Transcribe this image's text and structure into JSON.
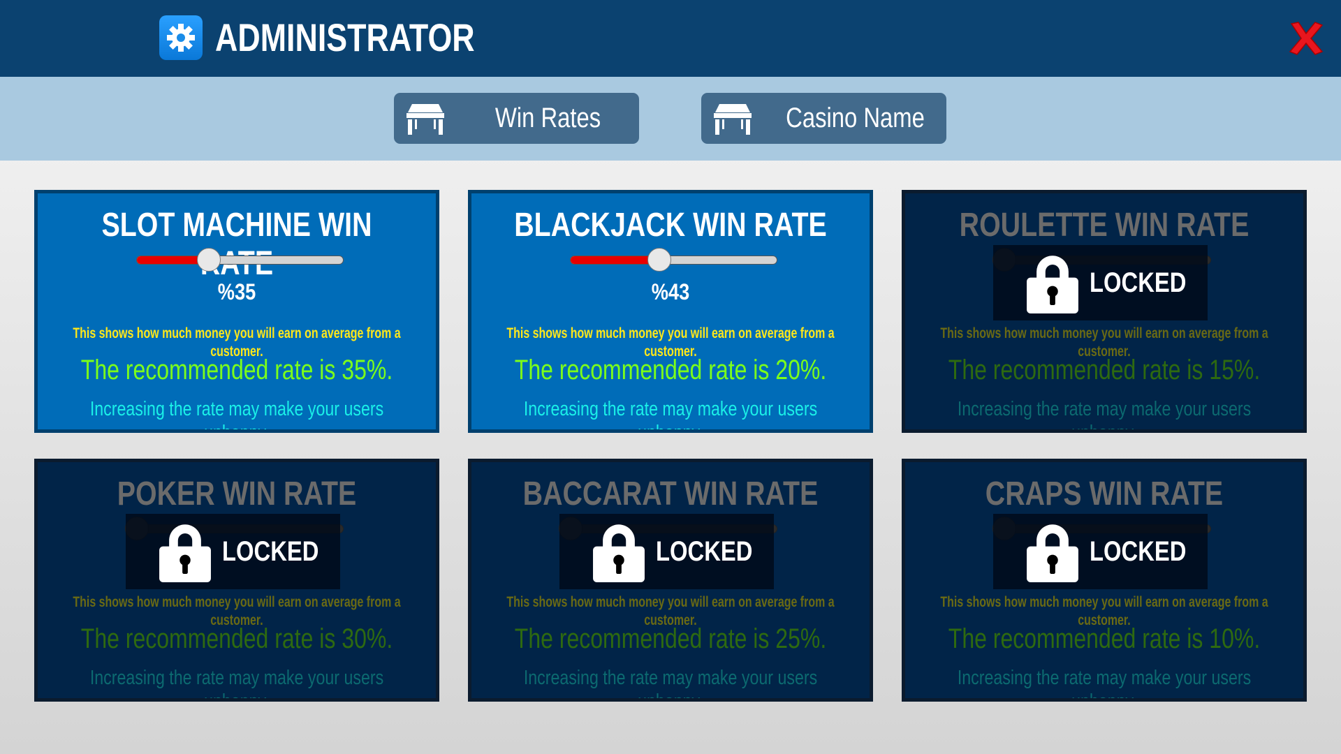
{
  "header": {
    "title": "ADMINISTRATOR",
    "icon": "gear-icon",
    "close_icon": "close-icon"
  },
  "tabs": [
    {
      "label": "Win Rates",
      "icon": "table-icon"
    },
    {
      "label": "Casino Name",
      "icon": "table-icon"
    }
  ],
  "colors": {
    "header": "#0b4270",
    "tabbar": "#a9c9e0",
    "card": "#006cb8",
    "card_locked": "#012448",
    "slider_fill": "#e80000",
    "desc": "#ffe81a",
    "recommended": "#7cff1a",
    "warning": "#1af0e8"
  },
  "cards": [
    {
      "title": "SLOT MACHINE WIN RATE",
      "value": "%35",
      "slider_percent": 35,
      "locked": false,
      "desc": "This shows how much money you will earn on average from a customer.",
      "recommended": "The recommended rate is 35%.",
      "warning": "Increasing the rate may make your users unhappy."
    },
    {
      "title": "BLACKJACK WIN RATE",
      "value": "%43",
      "slider_percent": 43,
      "locked": false,
      "desc": "This shows how much money you will earn on average from a customer.",
      "recommended": "The recommended rate is 20%.",
      "warning": "Increasing the rate may make your users unhappy."
    },
    {
      "title": "ROULETTE WIN RATE",
      "slider_percent": 0,
      "locked": true,
      "lock_label": "LOCKED",
      "desc": "This shows how much money you will earn on average from a customer.",
      "recommended": "The recommended rate is 15%.",
      "warning": "Increasing the rate may make your users unhappy."
    },
    {
      "title": "POKER WIN RATE",
      "slider_percent": 0,
      "locked": true,
      "lock_label": "LOCKED",
      "desc": "This shows how much money you will earn on average from a customer.",
      "recommended": "The recommended rate is 30%.",
      "warning": "Increasing the rate may make your users unhappy."
    },
    {
      "title": "BACCARAT WIN RATE",
      "slider_percent": 0,
      "locked": true,
      "lock_label": "LOCKED",
      "desc": "This shows how much money you will earn on average from a customer.",
      "recommended": "The recommended rate is 25%.",
      "warning": "Increasing the rate may make your users unhappy."
    },
    {
      "title": "CRAPS WIN RATE",
      "slider_percent": 0,
      "locked": true,
      "lock_label": "LOCKED",
      "desc": "This shows how much money you will earn on average from a customer.",
      "recommended": "The recommended rate is 10%.",
      "warning": "Increasing the rate may make your users unhappy."
    }
  ]
}
